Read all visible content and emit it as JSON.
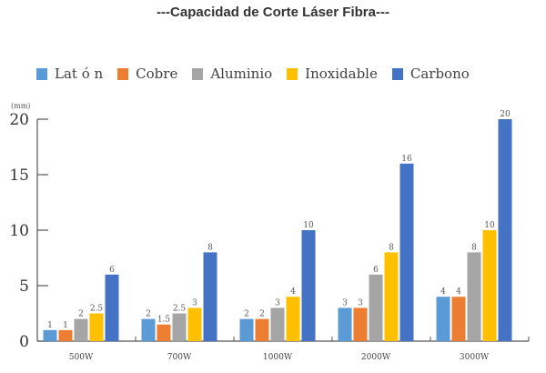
{
  "chart_data": {
    "type": "bar",
    "title": "---Capacidad de Corte Láser Fibra---",
    "xlabel": "",
    "ylabel": "(mm)",
    "ylim": [
      0,
      20
    ],
    "yticks": [
      0,
      5,
      10,
      15,
      20
    ],
    "grid": false,
    "legend_position": "top",
    "categories": [
      "500W",
      "700W",
      "1000W",
      "2000W",
      "3000W"
    ],
    "series": [
      {
        "name": "Lat ó n",
        "color": "#5b9bd5",
        "values": [
          1,
          2,
          2,
          3,
          4
        ],
        "labels": [
          "1",
          "2",
          "2",
          "3",
          "4"
        ]
      },
      {
        "name": "Cobre",
        "color": "#ed7d31",
        "values": [
          1,
          1.5,
          2,
          3,
          4
        ],
        "labels": [
          "1",
          "1.5",
          "2",
          "3",
          "4"
        ]
      },
      {
        "name": "Aluminio",
        "color": "#a5a5a5",
        "values": [
          2,
          2.5,
          3,
          6,
          8
        ],
        "labels": [
          "2",
          "2.5",
          "3",
          "6",
          "8"
        ]
      },
      {
        "name": "Inoxidable",
        "color": "#ffc000",
        "values": [
          2.5,
          3,
          4,
          8,
          10
        ],
        "labels": [
          "2.5",
          "3",
          "4",
          "8",
          "10"
        ]
      },
      {
        "name": "Carbono",
        "color": "#4472c4",
        "values": [
          6,
          8,
          10,
          16,
          20
        ],
        "labels": [
          "6",
          "8",
          "10",
          "16",
          "20"
        ]
      }
    ]
  }
}
